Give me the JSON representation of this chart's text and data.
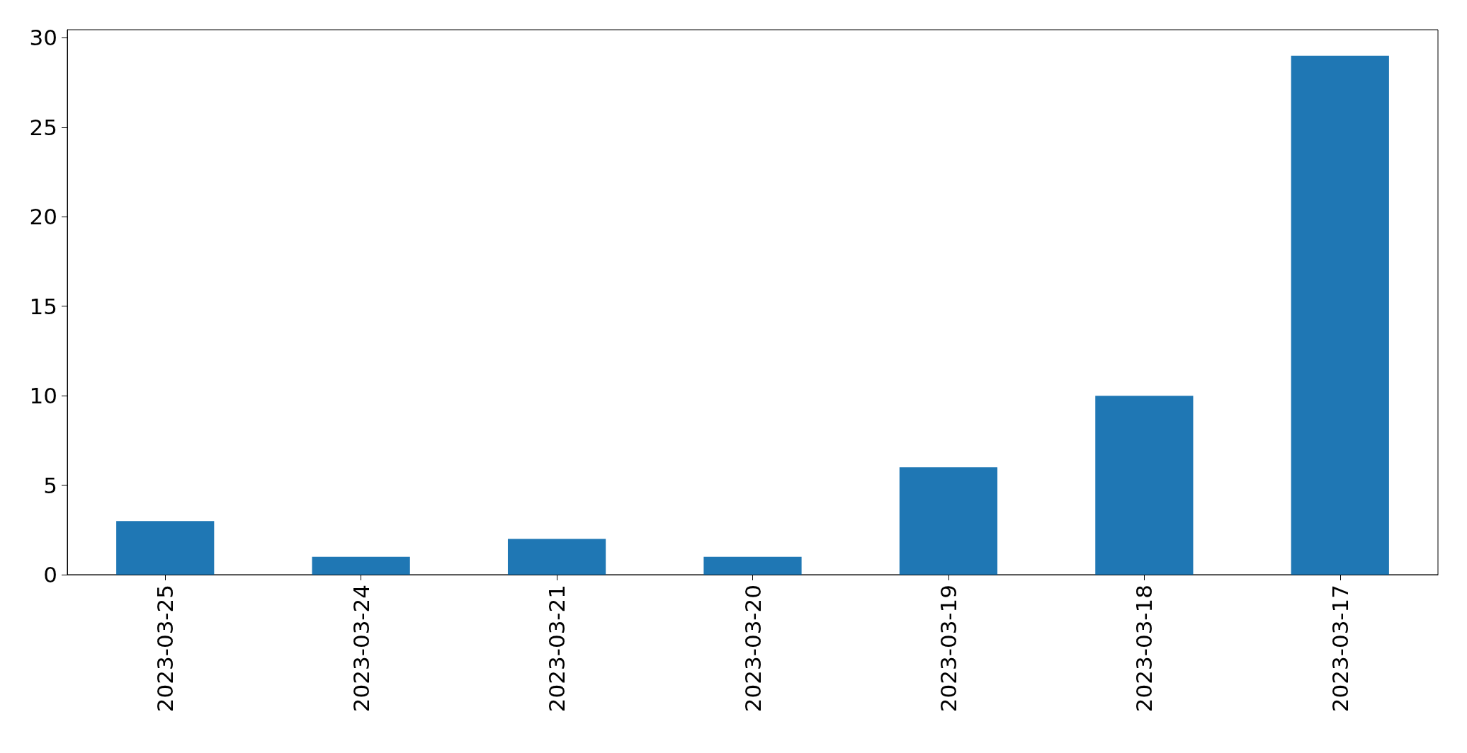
{
  "chart_data": {
    "type": "bar",
    "categories": [
      "2023-03-25",
      "2023-03-24",
      "2023-03-21",
      "2023-03-20",
      "2023-03-19",
      "2023-03-18",
      "2023-03-17"
    ],
    "values": [
      3,
      1,
      2,
      1,
      6,
      10,
      29
    ],
    "color": "#1f77b4",
    "ylim": [
      0,
      30.45
    ],
    "yticks": [
      0,
      5,
      10,
      15,
      20,
      25,
      30
    ],
    "grid": false
  }
}
